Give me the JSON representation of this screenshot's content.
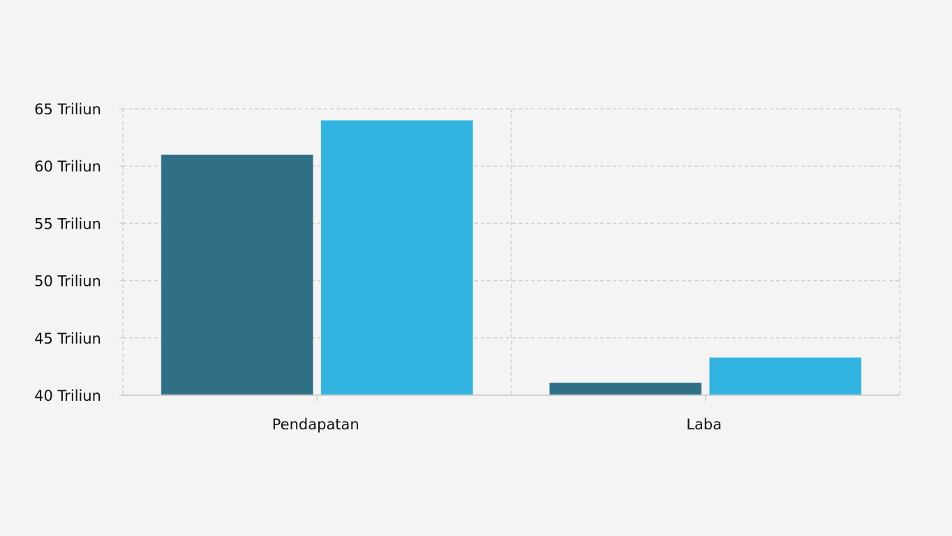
{
  "chart_data": {
    "type": "bar",
    "categories": [
      "Pendapatan",
      "Laba"
    ],
    "series": [
      {
        "values": [
          61,
          41.1
        ],
        "color": "#2f7086"
      },
      {
        "values": [
          64,
          43.3
        ],
        "color": "#31b2df"
      }
    ],
    "ylim": [
      40,
      65
    ],
    "yticks": [
      40,
      45,
      50,
      55,
      60,
      65
    ],
    "ytick_labels": [
      "40 Triliun",
      "45 Triliun",
      "50 Triliun",
      "55 Triliun",
      "60 Triliun",
      "65 Triliun"
    ],
    "grid": true,
    "grid_style": "dashed",
    "title": "",
    "xlabel": "",
    "ylabel": ""
  }
}
